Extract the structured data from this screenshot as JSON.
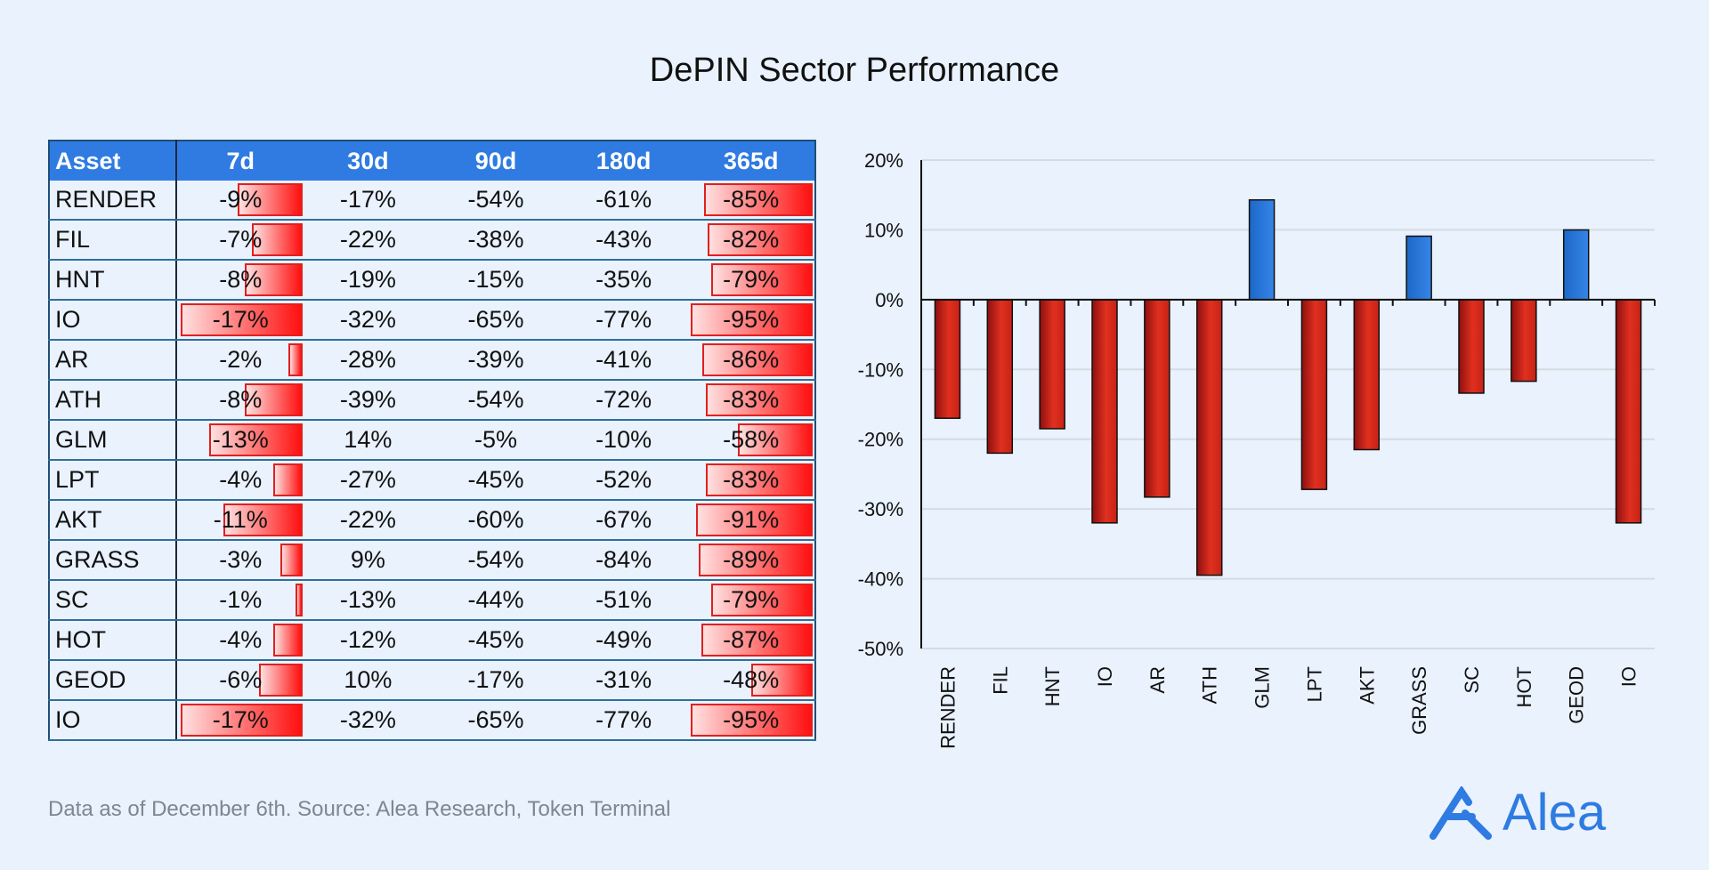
{
  "title": "DePIN Sector Performance",
  "table": {
    "headers": [
      "Asset",
      "7d",
      "30d",
      "90d",
      "180d",
      "365d"
    ],
    "rows": [
      [
        "RENDER",
        "-9%",
        "-17%",
        "-54%",
        "-61%",
        "-85%"
      ],
      [
        "FIL",
        "-7%",
        "-22%",
        "-38%",
        "-43%",
        "-82%"
      ],
      [
        "HNT",
        "-8%",
        "-19%",
        "-15%",
        "-35%",
        "-79%"
      ],
      [
        "IO",
        "-17%",
        "-32%",
        "-65%",
        "-77%",
        "-95%"
      ],
      [
        "AR",
        "-2%",
        "-28%",
        "-39%",
        "-41%",
        "-86%"
      ],
      [
        "ATH",
        "-8%",
        "-39%",
        "-54%",
        "-72%",
        "-83%"
      ],
      [
        "GLM",
        "-13%",
        "14%",
        "-5%",
        "-10%",
        "-58%"
      ],
      [
        "LPT",
        "-4%",
        "-27%",
        "-45%",
        "-52%",
        "-83%"
      ],
      [
        "AKT",
        "-11%",
        "-22%",
        "-60%",
        "-67%",
        "-91%"
      ],
      [
        "GRASS",
        "-3%",
        "9%",
        "-54%",
        "-84%",
        "-89%"
      ],
      [
        "SC",
        "-1%",
        "-13%",
        "-44%",
        "-51%",
        "-79%"
      ],
      [
        "HOT",
        "-4%",
        "-12%",
        "-45%",
        "-49%",
        "-87%"
      ],
      [
        "GEOD",
        "-6%",
        "10%",
        "-17%",
        "-31%",
        "-48%"
      ],
      [
        "IO",
        "-17%",
        "-32%",
        "-65%",
        "-77%",
        "-95%"
      ]
    ],
    "databar_columns": [
      "7d",
      "365d"
    ],
    "header_color": "#2f7be2",
    "databar_color": "#ff1010"
  },
  "chart_data": {
    "type": "bar",
    "categories": [
      "RENDER",
      "FIL",
      "HNT",
      "IO",
      "AR",
      "ATH",
      "GLM",
      "LPT",
      "AKT",
      "GRASS",
      "SC",
      "HOT",
      "GEOD",
      "IO"
    ],
    "values": [
      -17,
      -22,
      -18.5,
      -32,
      -28.3,
      -39.5,
      14.3,
      -27.2,
      -21.5,
      9.1,
      -13.4,
      -11.7,
      10,
      -32
    ],
    "ylim": [
      -50,
      20
    ],
    "yticks": [
      "20%",
      "10%",
      "0%",
      "-10%",
      "-20%",
      "-30%",
      "-40%",
      "-50%"
    ],
    "ytick_values": [
      20,
      10,
      0,
      -10,
      -20,
      -30,
      -40,
      -50
    ],
    "grid": true,
    "positive_color": "#2f7be2",
    "negative_color": "#d42a1e"
  },
  "footer": "Data as of December 6th. Source: Alea Research, Token Terminal",
  "logo": "Alea"
}
